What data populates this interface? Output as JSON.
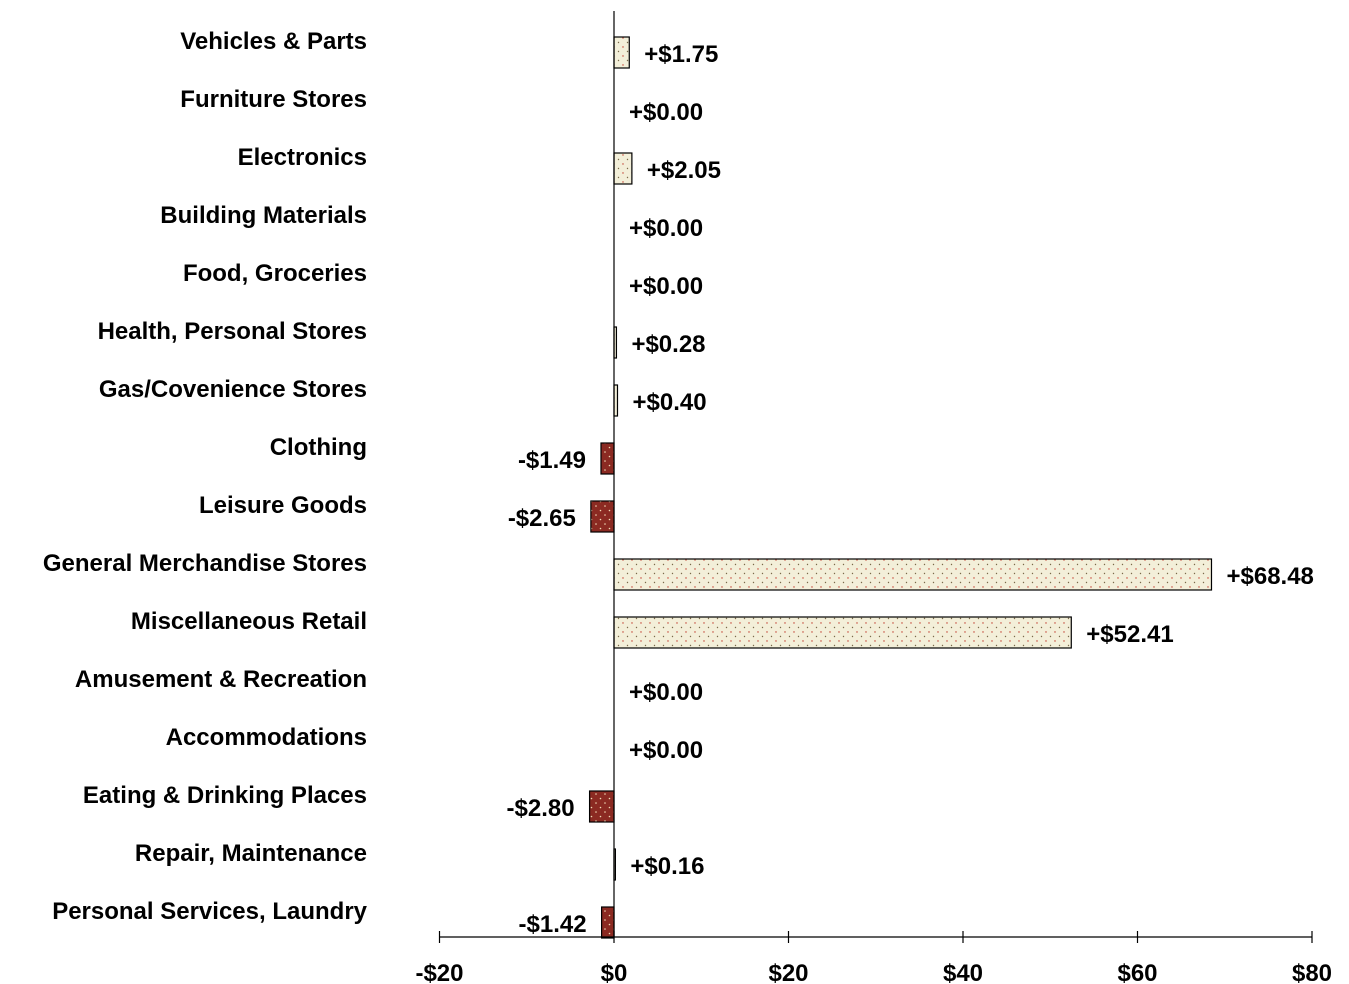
{
  "chart_data": {
    "type": "bar",
    "orientation": "horizontal",
    "categories": [
      "Vehicles & Parts",
      "Furniture Stores",
      "Electronics",
      "Building Materials",
      "Food, Groceries",
      "Health, Personal Stores",
      "Gas/Covenience Stores",
      "Clothing",
      "Leisure Goods",
      "General Merchandise Stores",
      "Miscellaneous Retail",
      "Amusement & Recreation",
      "Accommodations",
      "Eating & Drinking Places",
      "Repair, Maintenance",
      "Personal Services, Laundry"
    ],
    "values": [
      1.75,
      0.0,
      2.05,
      0.0,
      0.0,
      0.28,
      0.4,
      -1.49,
      -2.65,
      68.48,
      52.41,
      0.0,
      0.0,
      -2.8,
      0.16,
      -1.42
    ],
    "data_labels": [
      "+$1.75",
      "+$0.00",
      "+$2.05",
      "+$0.00",
      "+$0.00",
      "+$0.28",
      "+$0.40",
      "-$1.49",
      "-$2.65",
      "+$68.48",
      "+$52.41",
      "+$0.00",
      "+$0.00",
      "-$2.80",
      "+$0.16",
      "-$1.42"
    ],
    "x_ticks": [
      -20,
      0,
      20,
      40,
      60,
      80
    ],
    "x_tick_labels": [
      "-$20",
      "$0",
      "$20",
      "$40",
      "$60",
      "$80"
    ],
    "xlim": [
      -20,
      80
    ],
    "grid": false,
    "legend": "none",
    "colors": {
      "positive": "#f3efd9",
      "positive_dot": "#c0392b",
      "negative": "#8b2a22",
      "negative_dot": "#f0d9b5",
      "outline": "#000000"
    },
    "title": "",
    "xlabel": "",
    "ylabel": ""
  }
}
